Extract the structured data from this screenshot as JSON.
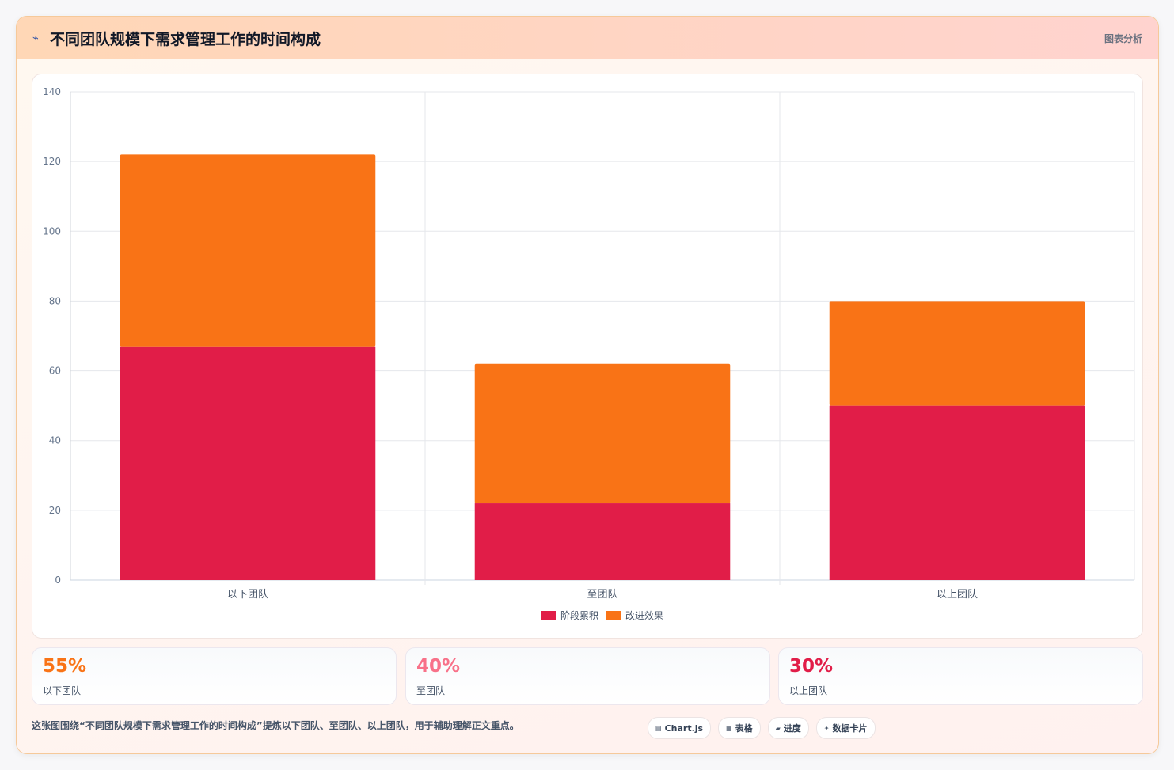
{
  "header": {
    "icon": "chart-trend-icon",
    "title": "不同团队规模下需求管理工作的时间构成",
    "tag": "图表分析"
  },
  "chart_data": {
    "type": "bar",
    "stacked": true,
    "categories": [
      "以下团队",
      "至团队",
      "以上团队"
    ],
    "series": [
      {
        "name": "阶段累积",
        "values": [
          67,
          22,
          50
        ],
        "color": "#e11d48"
      },
      {
        "name": "改进效果",
        "values": [
          55,
          40,
          30
        ],
        "color": "#f97316"
      }
    ],
    "ylim": [
      0,
      140
    ],
    "yticks": [
      0,
      20,
      40,
      60,
      80,
      100,
      120,
      140
    ],
    "grid": true,
    "legend": "bottom"
  },
  "stats": [
    {
      "value": "55%",
      "label": "以下团队",
      "color": "#f97316"
    },
    {
      "value": "40%",
      "label": "至团队",
      "color": "#f87189"
    },
    {
      "value": "30%",
      "label": "以上团队",
      "color": "#e11d48"
    }
  ],
  "caption": "这张图围绕“不同团队规模下需求管理工作的时间构成”提炼以下团队、至团队、以上团队，用于辅助理解正文重点。",
  "chips": [
    {
      "icon": "▤",
      "label": "Chart.js"
    },
    {
      "icon": "▦",
      "label": "表格"
    },
    {
      "icon": "▰",
      "label": "进度"
    },
    {
      "icon": "✦",
      "label": "数据卡片"
    }
  ]
}
